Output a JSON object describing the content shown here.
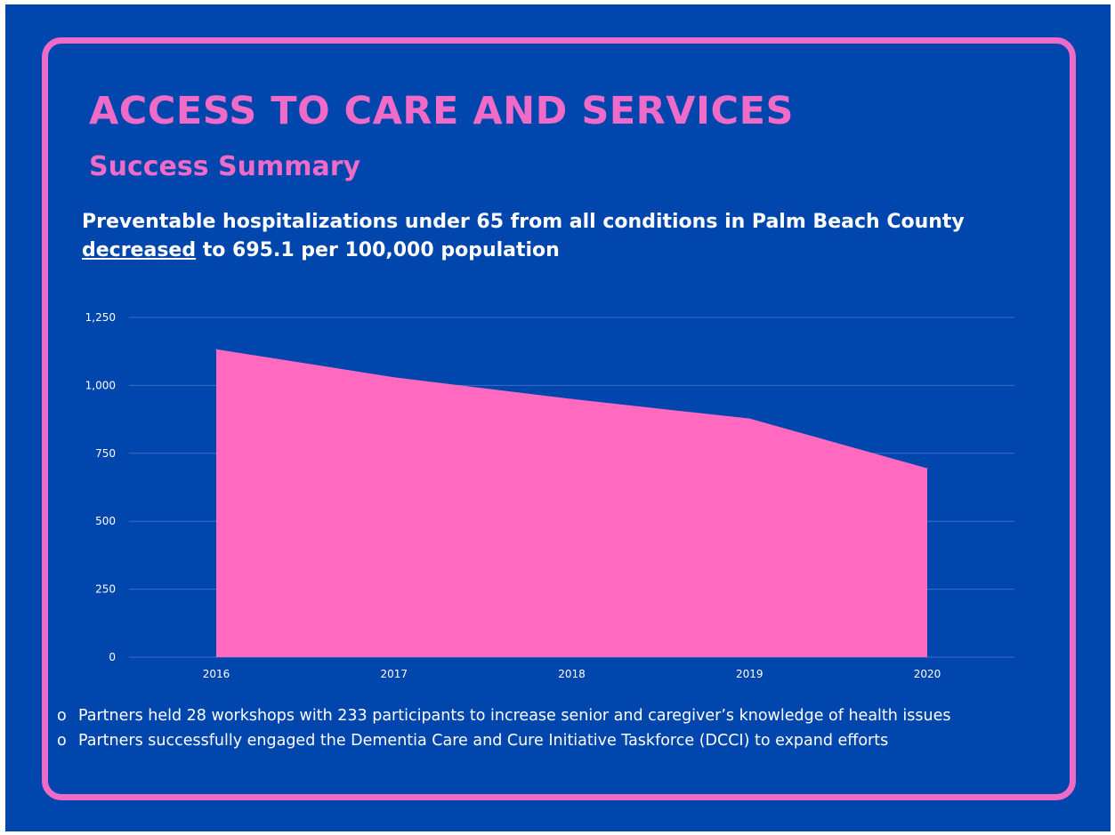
{
  "title": "ACCESS TO CARE AND SERVICES",
  "subtitle": "Success Summary",
  "headline": {
    "underlined": "decreased",
    "line1": "Preventable hospitalizations under 65 from all conditions in Palm Beach County",
    "line2_rest": " to 695.1 per 100,000 population"
  },
  "colors": {
    "background": "#0046AD",
    "accent": "#F06AC8",
    "area_fill": "#FF69C0",
    "text": "#FFFFFF"
  },
  "chart_data": {
    "type": "area",
    "x": [
      "2016",
      "2017",
      "2018",
      "2019",
      "2020"
    ],
    "values": [
      1133,
      1030,
      950,
      878,
      695.1
    ],
    "ylim": [
      0,
      1250
    ],
    "yticks": [
      0,
      250,
      500,
      750,
      1000,
      1250
    ],
    "ytick_labels": [
      "0",
      "250",
      "500",
      "750",
      "1,000",
      "1,250"
    ],
    "grid": true,
    "legend": "none"
  },
  "bullets": [
    {
      "marker": "o",
      "text": "Partners held 28 workshops with 233 participants to increase senior and caregiver’s knowledge of health issues"
    },
    {
      "marker": "o",
      "text": "Partners successfully engaged the Dementia Care and Cure Initiative Taskforce (DCCI) to expand efforts"
    }
  ]
}
